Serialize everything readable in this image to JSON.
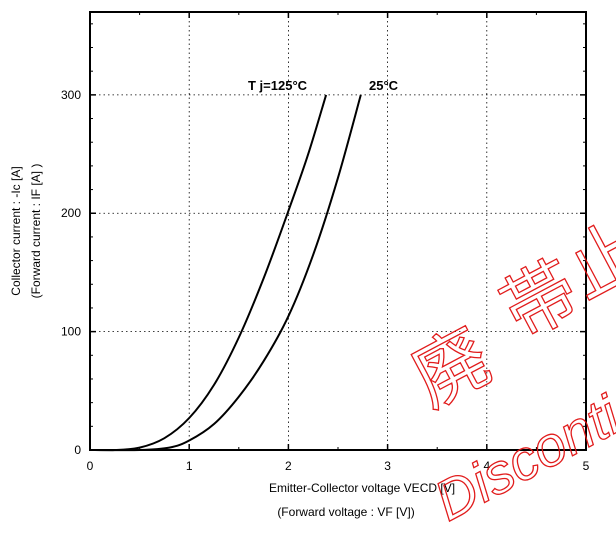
{
  "chart_data": {
    "type": "line",
    "x_label_line1": "Emitter-Collector voltage  VECD [V]",
    "x_label_line2": "(Forward  voltage   :   VF [V])",
    "y_label_line1": "Collector current  : -Ic  [A]",
    "y_label_line2": "(Forward  current  : IF [A] )",
    "xlim": [
      0,
      5
    ],
    "ylim": [
      0,
      370
    ],
    "x_ticks": [
      "0",
      "1",
      "2",
      "3",
      "4",
      "5"
    ],
    "y_ticks": [
      "0",
      "100",
      "200",
      "300"
    ],
    "grid": "dotted",
    "series": [
      {
        "name": "T j=125°C",
        "x": [
          0.25,
          0.5,
          0.75,
          1.0,
          1.25,
          1.5,
          1.75,
          2.0,
          2.2,
          2.38
        ],
        "y": [
          0,
          2,
          10,
          27,
          55,
          95,
          145,
          202,
          250,
          300
        ]
      },
      {
        "name": "25°C",
        "x": [
          0.5,
          0.8,
          1.0,
          1.25,
          1.5,
          1.75,
          2.0,
          2.25,
          2.5,
          2.73
        ],
        "y": [
          0,
          2,
          8,
          22,
          45,
          75,
          113,
          165,
          230,
          300
        ]
      }
    ]
  },
  "watermark": {
    "chars": [
      "廃",
      "帯",
      "止"
    ],
    "text": "Disconti",
    "color": "#e01010"
  }
}
